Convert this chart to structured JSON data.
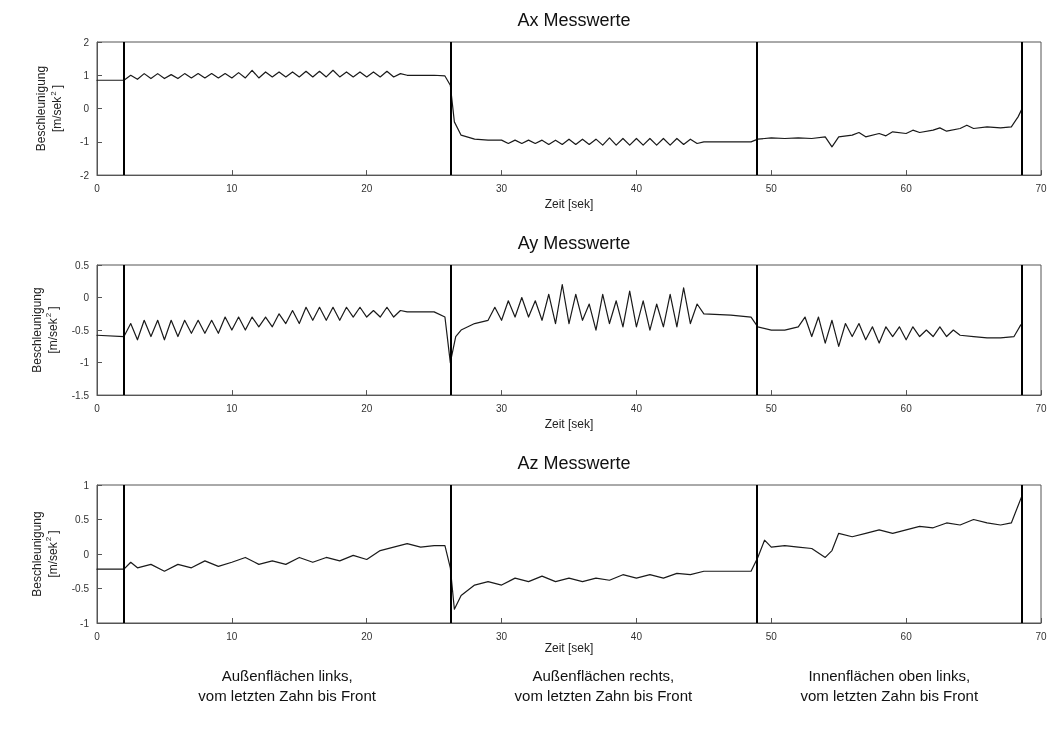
{
  "chart_data": [
    {
      "type": "line",
      "title": "Ax Messwerte",
      "xlabel": "Zeit [sek]",
      "ylabel": "Beschleunigung\n[m/sek$^{2}$]",
      "xlim": [
        0,
        70
      ],
      "xticks": [
        0,
        10,
        20,
        30,
        40,
        50,
        60,
        70
      ],
      "ylim": [
        -2,
        2
      ],
      "yticks": [
        -2,
        -1,
        0,
        1,
        2
      ],
      "grid": false,
      "ref_lines": [
        {
          "axis": "x",
          "value": 2,
          "color": "#000000"
        },
        {
          "axis": "x",
          "value": 26.2,
          "color": "#000000"
        },
        {
          "axis": "x",
          "value": 48.9,
          "color": "#000000"
        },
        {
          "axis": "x",
          "value": 68.6,
          "color": "#000000"
        }
      ],
      "series": [
        {
          "color": "#1a1a1a",
          "x": [
            0,
            1,
            2,
            2.5,
            3,
            3.5,
            4,
            4.5,
            5,
            5.5,
            6,
            6.5,
            7,
            7.5,
            8,
            8.5,
            9,
            9.5,
            10,
            10.5,
            11,
            11.5,
            12,
            12.5,
            13,
            13.5,
            14,
            14.5,
            15,
            15.5,
            16,
            16.5,
            17,
            17.5,
            18,
            18.5,
            19,
            19.5,
            20,
            20.5,
            21,
            21.5,
            22,
            22.5,
            23,
            24,
            25,
            25.8,
            26.2,
            26.5,
            27,
            28,
            29,
            30,
            30.5,
            31,
            31.5,
            32,
            32.5,
            33,
            33.5,
            34,
            34.5,
            35,
            35.5,
            36,
            36.5,
            37,
            37.5,
            38,
            38.5,
            39,
            39.5,
            40,
            40.5,
            41,
            41.5,
            42,
            42.5,
            43,
            43.5,
            44,
            44.5,
            45,
            47,
            48.5,
            49,
            50,
            51,
            52,
            53,
            54,
            54.5,
            55,
            56,
            56.5,
            57,
            58,
            58.5,
            59,
            60,
            60.5,
            61,
            62,
            62.5,
            63,
            64,
            64.5,
            65,
            66,
            67,
            67.8,
            68.3,
            68.6
          ],
          "values": [
            0.85,
            0.85,
            0.85,
            1.0,
            0.88,
            1.05,
            0.9,
            1.05,
            0.9,
            1.02,
            0.9,
            1.05,
            0.92,
            1.05,
            0.92,
            1.05,
            0.92,
            1.05,
            0.92,
            1.08,
            0.92,
            1.15,
            0.92,
            1.1,
            0.95,
            1.1,
            0.95,
            1.1,
            0.95,
            1.12,
            0.95,
            1.12,
            0.95,
            1.15,
            0.95,
            1.1,
            0.95,
            1.1,
            0.95,
            1.1,
            0.95,
            1.12,
            0.95,
            1.05,
            1.0,
            1.0,
            1.0,
            0.98,
            0.7,
            -0.4,
            -0.8,
            -0.92,
            -0.95,
            -0.95,
            -1.05,
            -0.95,
            -1.05,
            -0.95,
            -1.05,
            -0.95,
            -1.08,
            -0.95,
            -1.08,
            -0.92,
            -1.08,
            -0.92,
            -1.08,
            -0.92,
            -1.1,
            -0.88,
            -1.1,
            -0.9,
            -1.1,
            -0.9,
            -1.1,
            -0.9,
            -1.1,
            -0.9,
            -1.1,
            -0.9,
            -1.08,
            -0.92,
            -1.05,
            -1.0,
            -1.0,
            -1.0,
            -0.92,
            -0.88,
            -0.9,
            -0.88,
            -0.9,
            -0.85,
            -1.15,
            -0.85,
            -0.8,
            -0.72,
            -0.85,
            -0.75,
            -0.82,
            -0.7,
            -0.75,
            -0.65,
            -0.72,
            -0.65,
            -0.58,
            -0.68,
            -0.6,
            -0.5,
            -0.6,
            -0.55,
            -0.58,
            -0.55,
            -0.25,
            0
          ]
        }
      ]
    },
    {
      "type": "line",
      "title": "Ay Messwerte",
      "xlabel": "Zeit [sek]",
      "ylabel": "Beschleunigung\n[m/sek$^{2}$]",
      "xlim": [
        0,
        70
      ],
      "xticks": [
        0,
        10,
        20,
        30,
        40,
        50,
        60,
        70
      ],
      "ylim": [
        -1.5,
        0.5
      ],
      "yticks": [
        -1.5,
        -1,
        -0.5,
        0,
        0.5
      ],
      "grid": false,
      "ref_lines": [
        {
          "axis": "x",
          "value": 2,
          "color": "#000000"
        },
        {
          "axis": "x",
          "value": 26.2,
          "color": "#000000"
        },
        {
          "axis": "x",
          "value": 48.9,
          "color": "#000000"
        },
        {
          "axis": "x",
          "value": 68.6,
          "color": "#000000"
        }
      ],
      "series": [
        {
          "color": "#1a1a1a",
          "x": [
            0,
            2,
            2.5,
            3,
            3.5,
            4,
            4.5,
            5,
            5.5,
            6,
            6.5,
            7,
            7.5,
            8,
            8.5,
            9,
            9.5,
            10,
            10.5,
            11,
            11.5,
            12,
            12.5,
            13,
            13.5,
            14,
            14.5,
            15,
            15.5,
            16,
            16.5,
            17,
            17.5,
            18,
            18.5,
            19,
            19.5,
            20,
            20.5,
            21,
            21.5,
            22,
            22.5,
            23,
            25,
            25.8,
            26.2,
            26.6,
            27,
            28,
            29,
            29.5,
            30,
            30.5,
            31,
            31.5,
            32,
            32.5,
            33,
            33.5,
            34,
            34.5,
            35,
            35.5,
            36,
            36.5,
            37,
            37.5,
            38,
            38.5,
            39,
            39.5,
            40,
            40.5,
            41,
            41.5,
            42,
            42.5,
            43,
            43.5,
            44,
            44.5,
            45,
            47,
            48.5,
            49,
            50,
            51,
            52,
            52.5,
            53,
            53.5,
            54,
            54.5,
            55,
            55.5,
            56,
            56.5,
            57,
            57.5,
            58,
            58.5,
            59,
            59.5,
            60,
            60.5,
            61,
            61.5,
            62,
            62.5,
            63,
            63.5,
            64,
            65,
            66,
            67,
            68,
            68.5
          ],
          "values": [
            -0.58,
            -0.6,
            -0.4,
            -0.65,
            -0.35,
            -0.6,
            -0.35,
            -0.65,
            -0.35,
            -0.6,
            -0.35,
            -0.55,
            -0.35,
            -0.55,
            -0.35,
            -0.55,
            -0.3,
            -0.5,
            -0.3,
            -0.5,
            -0.3,
            -0.45,
            -0.3,
            -0.45,
            -0.25,
            -0.4,
            -0.2,
            -0.4,
            -0.15,
            -0.35,
            -0.15,
            -0.35,
            -0.15,
            -0.35,
            -0.15,
            -0.3,
            -0.15,
            -0.3,
            -0.2,
            -0.3,
            -0.15,
            -0.3,
            -0.2,
            -0.22,
            -0.22,
            -0.3,
            -1.0,
            -0.6,
            -0.5,
            -0.4,
            -0.35,
            -0.15,
            -0.35,
            -0.05,
            -0.3,
            0,
            -0.3,
            -0.05,
            -0.35,
            0.05,
            -0.4,
            0.2,
            -0.4,
            0.05,
            -0.35,
            -0.1,
            -0.5,
            0.05,
            -0.4,
            -0.05,
            -0.45,
            0.1,
            -0.45,
            -0.05,
            -0.5,
            -0.1,
            -0.45,
            0.05,
            -0.45,
            0.15,
            -0.4,
            -0.1,
            -0.25,
            -0.27,
            -0.3,
            -0.45,
            -0.5,
            -0.5,
            -0.45,
            -0.3,
            -0.6,
            -0.3,
            -0.7,
            -0.35,
            -0.75,
            -0.4,
            -0.6,
            -0.4,
            -0.65,
            -0.45,
            -0.7,
            -0.45,
            -0.6,
            -0.45,
            -0.65,
            -0.45,
            -0.6,
            -0.5,
            -0.6,
            -0.45,
            -0.6,
            -0.5,
            -0.58,
            -0.6,
            -0.62,
            -0.62,
            -0.6,
            -0.42
          ]
        }
      ]
    },
    {
      "type": "line",
      "title": "Az Messwerte",
      "xlabel": "Zeit [sek]",
      "ylabel": "Beschleunigung\n[m/sek$^{2}$]",
      "xlim": [
        0,
        70
      ],
      "xticks": [
        0,
        10,
        20,
        30,
        40,
        50,
        60,
        70
      ],
      "ylim": [
        -1,
        1
      ],
      "yticks": [
        -1,
        -0.5,
        0,
        0.5,
        1
      ],
      "grid": false,
      "ref_lines": [
        {
          "axis": "x",
          "value": 2,
          "color": "#000000"
        },
        {
          "axis": "x",
          "value": 26.2,
          "color": "#000000"
        },
        {
          "axis": "x",
          "value": 48.9,
          "color": "#000000"
        },
        {
          "axis": "x",
          "value": 68.6,
          "color": "#000000"
        }
      ],
      "annotations": [
        "Außenflächen links,\nvom letzten Zahn bis Front",
        "Außenflächen rechts,\nvom letzten Zahn bis Front",
        "Innenflächen oben links,\nvom letzten Zahn bis Front"
      ],
      "series": [
        {
          "color": "#1a1a1a",
          "x": [
            0,
            2,
            2.5,
            3,
            4,
            5,
            6,
            7,
            8,
            9,
            10,
            11,
            12,
            13,
            14,
            15,
            16,
            17,
            18,
            19,
            20,
            21,
            22,
            23,
            24,
            25,
            25.8,
            26.2,
            26.5,
            27,
            28,
            29,
            30,
            31,
            32,
            33,
            34,
            35,
            36,
            37,
            38,
            39,
            40,
            41,
            42,
            43,
            44,
            45,
            47,
            48.5,
            49,
            49.5,
            50,
            51,
            52,
            53,
            54,
            54.5,
            55,
            56,
            57,
            58,
            59,
            60,
            61,
            62,
            63,
            64,
            65,
            66,
            67,
            67.8,
            68.3,
            68.6
          ],
          "values": [
            -0.22,
            -0.22,
            -0.12,
            -0.2,
            -0.15,
            -0.25,
            -0.15,
            -0.2,
            -0.1,
            -0.18,
            -0.12,
            -0.05,
            -0.15,
            -0.1,
            -0.15,
            -0.05,
            -0.12,
            -0.05,
            -0.1,
            -0.02,
            -0.08,
            0.05,
            0.1,
            0.15,
            0.1,
            0.12,
            0.12,
            -0.2,
            -0.8,
            -0.6,
            -0.45,
            -0.4,
            -0.45,
            -0.35,
            -0.4,
            -0.32,
            -0.4,
            -0.35,
            -0.4,
            -0.35,
            -0.38,
            -0.3,
            -0.35,
            -0.3,
            -0.35,
            -0.28,
            -0.3,
            -0.25,
            -0.25,
            -0.25,
            -0.05,
            0.2,
            0.1,
            0.12,
            0.1,
            0.08,
            -0.05,
            0.05,
            0.3,
            0.25,
            0.3,
            0.35,
            0.3,
            0.35,
            0.4,
            0.38,
            0.45,
            0.42,
            0.5,
            0.45,
            0.42,
            0.45,
            0.7,
            0.85
          ]
        }
      ]
    }
  ]
}
